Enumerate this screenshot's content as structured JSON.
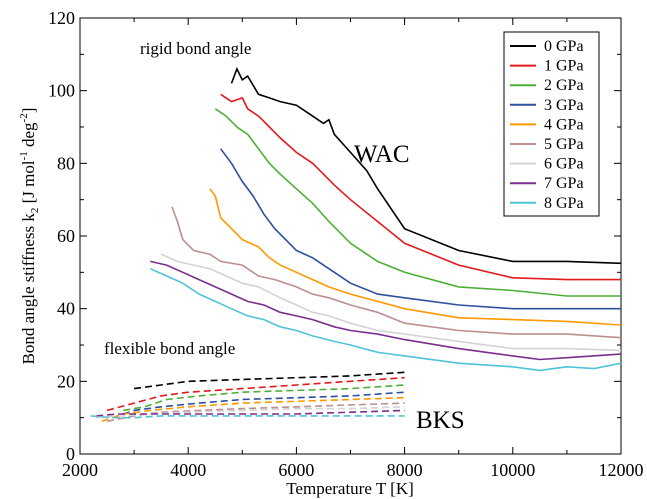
{
  "chart_data": {
    "type": "line",
    "xlabel": "Temperature  T  [K]",
    "ylabel_main": "Bond angle stiffness  k",
    "ylabel_sub": "2",
    "ylabel_units_pre": "[J mol",
    "ylabel_units_exp1": "-1",
    "ylabel_units_mid": " deg",
    "ylabel_units_exp2": "-2",
    "ylabel_units_post": "]",
    "xlim": [
      2000,
      12000
    ],
    "ylim": [
      0,
      120
    ],
    "xticks": [
      2000,
      4000,
      6000,
      8000,
      10000,
      12000
    ],
    "yticks": [
      0,
      20,
      40,
      60,
      80,
      100,
      120
    ],
    "xtick_labels": [
      "2000",
      "4000",
      "6000",
      "8000",
      "10000",
      "12000"
    ],
    "ytick_labels": [
      "0",
      "20",
      "40",
      "60",
      "80",
      "100",
      "120"
    ],
    "annotations": {
      "rigid": "rigid bond angle",
      "flexible": "flexible bond angle",
      "wac": "WAC",
      "bks": "BKS"
    },
    "legend_position": "top-right",
    "series": [
      {
        "name": "0 GPa",
        "color": "#000000",
        "wac": [
          [
            4800,
            102
          ],
          [
            4900,
            106
          ],
          [
            5000,
            103
          ],
          [
            5100,
            104
          ],
          [
            5300,
            99
          ],
          [
            5500,
            98
          ],
          [
            5700,
            97
          ],
          [
            6000,
            96
          ],
          [
            6300,
            93
          ],
          [
            6500,
            91
          ],
          [
            6600,
            92
          ],
          [
            6700,
            88
          ],
          [
            7000,
            83
          ],
          [
            7300,
            78
          ],
          [
            7500,
            73
          ],
          [
            8000,
            62
          ],
          [
            9000,
            56
          ],
          [
            10000,
            53
          ],
          [
            11000,
            53
          ],
          [
            12000,
            52.5
          ]
        ],
        "bks": [
          [
            3000,
            18
          ],
          [
            3500,
            19
          ],
          [
            4000,
            20
          ],
          [
            5000,
            20.5
          ],
          [
            6000,
            21
          ],
          [
            7000,
            21.5
          ],
          [
            7500,
            22
          ],
          [
            8000,
            22.5
          ]
        ]
      },
      {
        "name": "1 GPa",
        "color": "#e31a1c",
        "wac": [
          [
            4600,
            99
          ],
          [
            4800,
            97
          ],
          [
            5000,
            98
          ],
          [
            5100,
            95
          ],
          [
            5300,
            93
          ],
          [
            5500,
            90
          ],
          [
            5700,
            87
          ],
          [
            6000,
            83
          ],
          [
            6300,
            80
          ],
          [
            6500,
            77
          ],
          [
            6700,
            74
          ],
          [
            7000,
            70
          ],
          [
            7500,
            64
          ],
          [
            8000,
            58
          ],
          [
            9000,
            52
          ],
          [
            10000,
            48.5
          ],
          [
            11000,
            48
          ],
          [
            12000,
            48
          ]
        ],
        "bks": [
          [
            2500,
            12
          ],
          [
            3000,
            14
          ],
          [
            3500,
            16
          ],
          [
            4000,
            17
          ],
          [
            5000,
            18
          ],
          [
            6000,
            19
          ],
          [
            7000,
            20
          ],
          [
            8000,
            21
          ]
        ]
      },
      {
        "name": "2 GPa",
        "color": "#4daf33",
        "wac": [
          [
            4500,
            95
          ],
          [
            4700,
            93
          ],
          [
            4900,
            90
          ],
          [
            5100,
            88
          ],
          [
            5300,
            84
          ],
          [
            5500,
            80
          ],
          [
            5700,
            77
          ],
          [
            6000,
            73
          ],
          [
            6300,
            69
          ],
          [
            6600,
            64
          ],
          [
            7000,
            58
          ],
          [
            7500,
            53
          ],
          [
            8000,
            50
          ],
          [
            9000,
            46
          ],
          [
            10000,
            45
          ],
          [
            11000,
            43.5
          ],
          [
            12000,
            43.5
          ]
        ],
        "bks": [
          [
            2800,
            12
          ],
          [
            3200,
            13
          ],
          [
            3600,
            15
          ],
          [
            4200,
            16
          ],
          [
            5000,
            17
          ],
          [
            6000,
            17.5
          ],
          [
            7000,
            18
          ],
          [
            8000,
            19
          ]
        ]
      },
      {
        "name": "3 GPa",
        "color": "#2c4fa0",
        "wac": [
          [
            4600,
            84
          ],
          [
            4800,
            80
          ],
          [
            5000,
            75
          ],
          [
            5200,
            71
          ],
          [
            5400,
            66
          ],
          [
            5600,
            62
          ],
          [
            5800,
            59
          ],
          [
            6000,
            56
          ],
          [
            6300,
            54
          ],
          [
            6600,
            51
          ],
          [
            7000,
            47
          ],
          [
            7500,
            44
          ],
          [
            8000,
            43
          ],
          [
            9000,
            41
          ],
          [
            10000,
            40
          ],
          [
            11000,
            40
          ],
          [
            12000,
            40
          ]
        ],
        "bks": [
          [
            2600,
            10
          ],
          [
            3000,
            12
          ],
          [
            3500,
            13
          ],
          [
            4200,
            14
          ],
          [
            5000,
            15
          ],
          [
            6000,
            15.5
          ],
          [
            7000,
            16
          ],
          [
            8000,
            17
          ]
        ]
      },
      {
        "name": "4 GPa",
        "color": "#ff9900",
        "wac": [
          [
            4400,
            73
          ],
          [
            4500,
            71
          ],
          [
            4600,
            65
          ],
          [
            4800,
            62
          ],
          [
            5000,
            59
          ],
          [
            5300,
            57
          ],
          [
            5500,
            54
          ],
          [
            5700,
            52
          ],
          [
            6000,
            50
          ],
          [
            6300,
            48
          ],
          [
            6600,
            46
          ],
          [
            7000,
            44
          ],
          [
            7500,
            42
          ],
          [
            8000,
            40
          ],
          [
            9000,
            37.5
          ],
          [
            10000,
            37
          ],
          [
            11000,
            36.5
          ],
          [
            12000,
            35.5
          ]
        ],
        "bks": [
          [
            2400,
            9
          ],
          [
            2800,
            11
          ],
          [
            3300,
            12
          ],
          [
            4000,
            13
          ],
          [
            5000,
            14
          ],
          [
            6000,
            14.5
          ],
          [
            7000,
            15
          ],
          [
            8000,
            15.5
          ]
        ]
      },
      {
        "name": "5 GPa",
        "color": "#bc8f8f",
        "wac": [
          [
            3700,
            68
          ],
          [
            3800,
            64
          ],
          [
            3900,
            59
          ],
          [
            4100,
            56
          ],
          [
            4400,
            55
          ],
          [
            4600,
            53
          ],
          [
            5000,
            52
          ],
          [
            5300,
            49
          ],
          [
            5600,
            48
          ],
          [
            6000,
            46
          ],
          [
            6300,
            44
          ],
          [
            6600,
            43
          ],
          [
            7000,
            41
          ],
          [
            7500,
            39
          ],
          [
            8000,
            36
          ],
          [
            9000,
            34
          ],
          [
            10000,
            33
          ],
          [
            11000,
            33
          ],
          [
            12000,
            32
          ]
        ],
        "bks": [
          [
            2500,
            9
          ],
          [
            3000,
            10.5
          ],
          [
            3500,
            11.5
          ],
          [
            4200,
            12
          ],
          [
            5000,
            12.5
          ],
          [
            6000,
            13
          ],
          [
            7000,
            13.5
          ],
          [
            8000,
            14
          ]
        ]
      },
      {
        "name": "6 GPa",
        "color": "#d3d3d3",
        "wac": [
          [
            3500,
            55
          ],
          [
            3800,
            53
          ],
          [
            4100,
            52
          ],
          [
            4400,
            51
          ],
          [
            4700,
            49
          ],
          [
            5000,
            47
          ],
          [
            5300,
            46
          ],
          [
            5700,
            43
          ],
          [
            6000,
            41
          ],
          [
            6300,
            39
          ],
          [
            6600,
            38
          ],
          [
            7000,
            36
          ],
          [
            7500,
            34
          ],
          [
            8000,
            33
          ],
          [
            9000,
            31
          ],
          [
            10000,
            29
          ],
          [
            11000,
            29
          ],
          [
            12000,
            28.5
          ]
        ],
        "bks": [
          [
            2300,
            10
          ],
          [
            2800,
            10.5
          ],
          [
            3300,
            11
          ],
          [
            4000,
            11.5
          ],
          [
            5000,
            12
          ],
          [
            6000,
            12.5
          ],
          [
            7000,
            12.5
          ],
          [
            8000,
            13
          ]
        ]
      },
      {
        "name": "7 GPa",
        "color": "#7b2d8e",
        "wac": [
          [
            3300,
            53
          ],
          [
            3600,
            52
          ],
          [
            3900,
            50
          ],
          [
            4200,
            48
          ],
          [
            4500,
            46
          ],
          [
            4800,
            44
          ],
          [
            5100,
            42
          ],
          [
            5400,
            41
          ],
          [
            5700,
            39
          ],
          [
            6000,
            38
          ],
          [
            6300,
            37
          ],
          [
            6700,
            35
          ],
          [
            7000,
            34
          ],
          [
            7500,
            33
          ],
          [
            8000,
            31.5
          ],
          [
            9000,
            29
          ],
          [
            10000,
            27
          ],
          [
            10500,
            26
          ],
          [
            11000,
            26.5
          ],
          [
            12000,
            27.5
          ]
        ],
        "bks": [
          [
            2300,
            10.5
          ],
          [
            2700,
            11
          ],
          [
            3200,
            11
          ],
          [
            4000,
            11
          ],
          [
            5000,
            11
          ],
          [
            6000,
            11
          ],
          [
            7000,
            11.5
          ],
          [
            8000,
            12
          ]
        ]
      },
      {
        "name": "8 GPa",
        "color": "#4fc3d8",
        "wac": [
          [
            3300,
            51
          ],
          [
            3600,
            49
          ],
          [
            3900,
            47
          ],
          [
            4200,
            44
          ],
          [
            4500,
            42
          ],
          [
            4800,
            40
          ],
          [
            5100,
            38
          ],
          [
            5400,
            37
          ],
          [
            5700,
            35
          ],
          [
            6000,
            34
          ],
          [
            6300,
            32.5
          ],
          [
            6700,
            31
          ],
          [
            7000,
            30
          ],
          [
            7500,
            28
          ],
          [
            8000,
            27
          ],
          [
            9000,
            25
          ],
          [
            10000,
            24
          ],
          [
            10500,
            23
          ],
          [
            11000,
            24
          ],
          [
            11500,
            23.5
          ],
          [
            12000,
            25
          ]
        ],
        "bks": [
          [
            2200,
            10.5
          ],
          [
            2600,
            10
          ],
          [
            3000,
            10
          ],
          [
            3500,
            10.5
          ],
          [
            4000,
            10.5
          ],
          [
            5000,
            10.5
          ],
          [
            6000,
            10.5
          ],
          [
            7000,
            10.5
          ],
          [
            8000,
            10.5
          ]
        ]
      }
    ]
  }
}
